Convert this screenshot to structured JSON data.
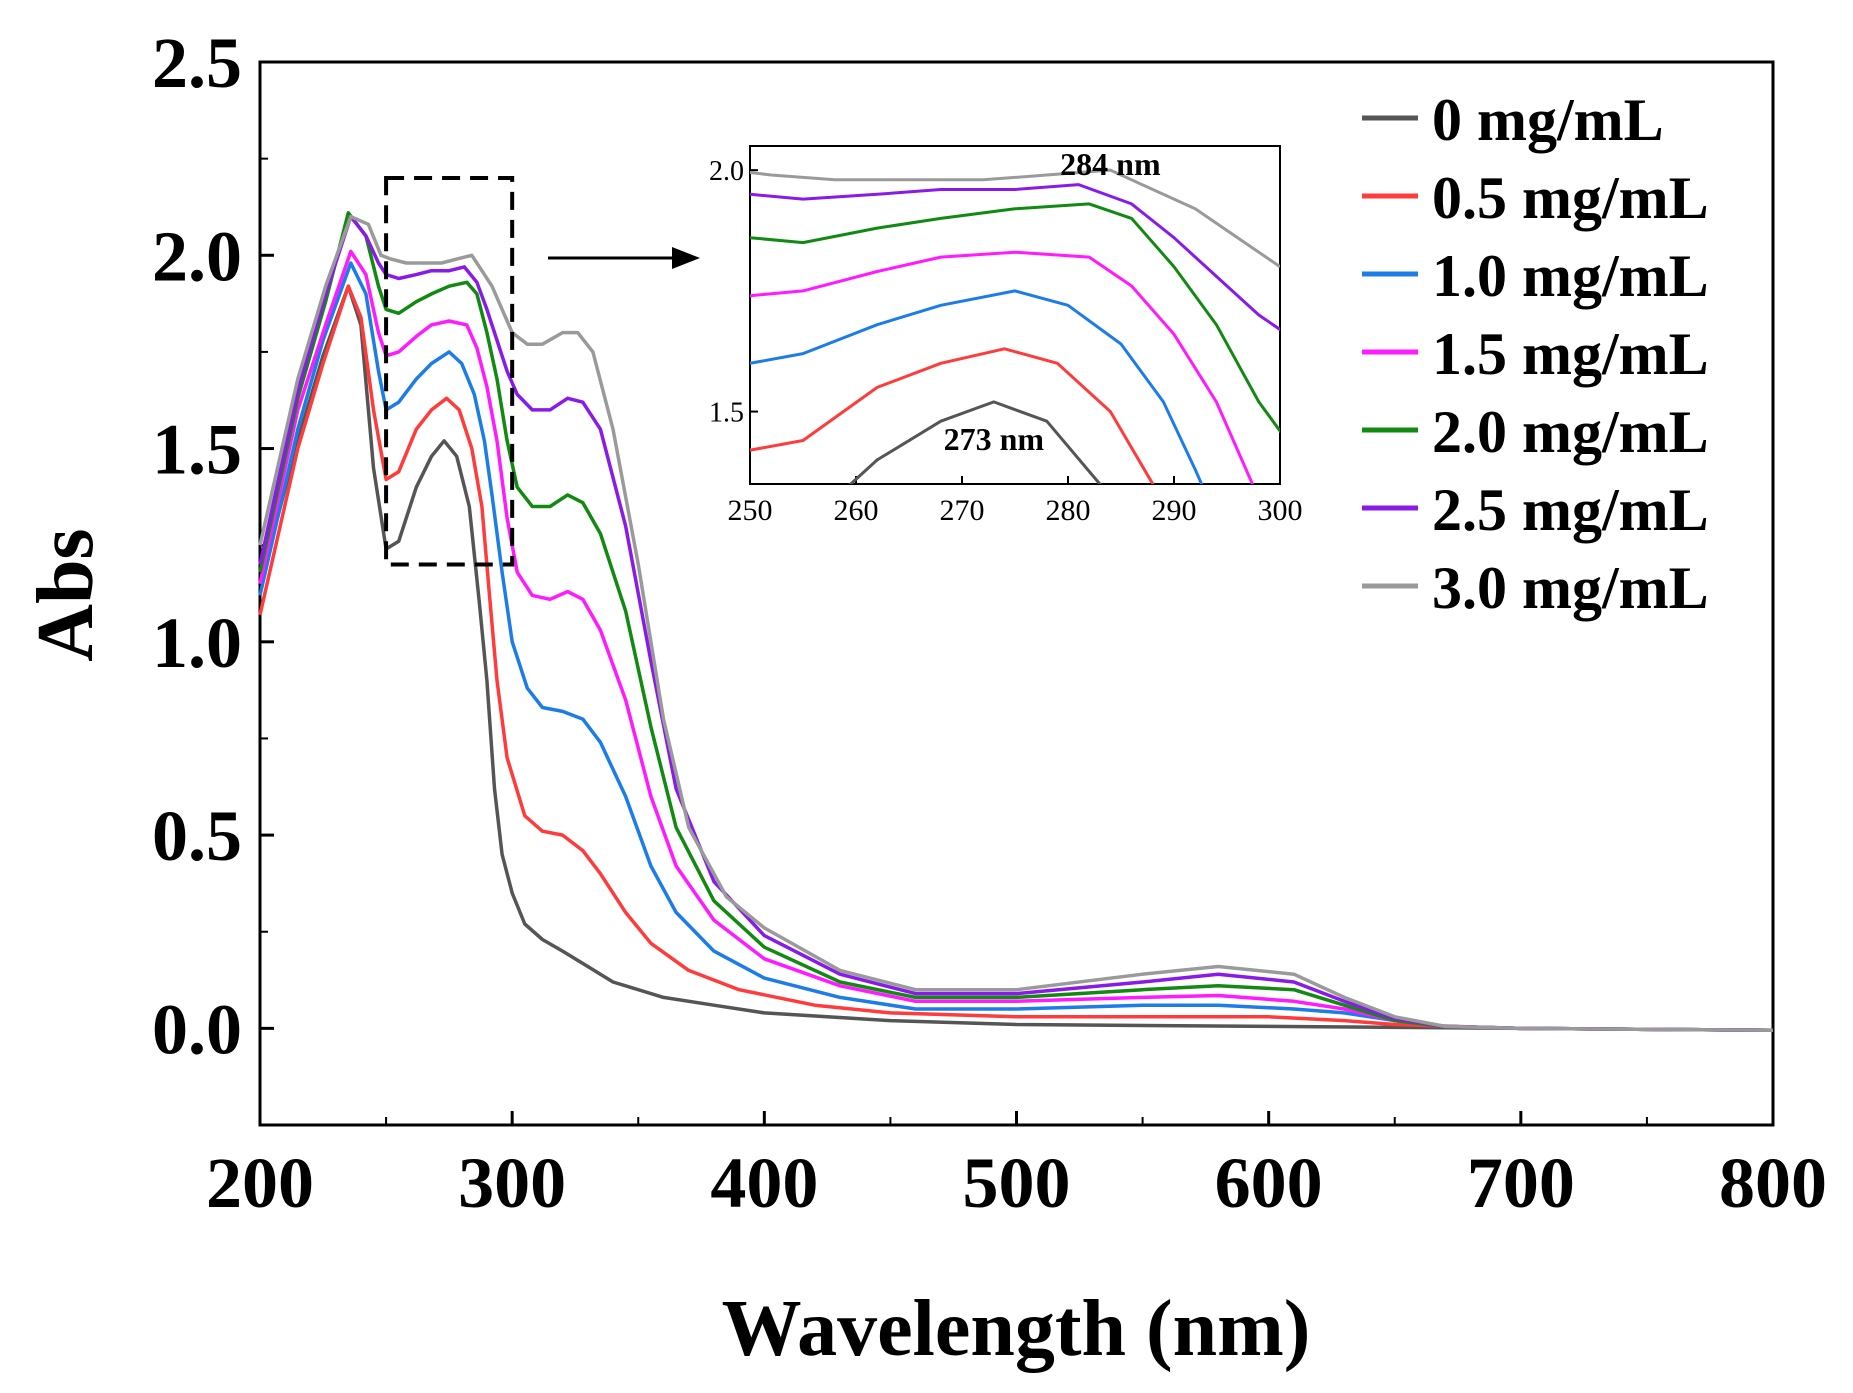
{
  "chart_data": {
    "type": "line",
    "title": "",
    "xlabel": "Wavelength (nm)",
    "ylabel": "Abs",
    "xlim": [
      200,
      800
    ],
    "ylim": [
      -0.25,
      2.5
    ],
    "xticks": [
      "200",
      "300",
      "400",
      "500",
      "600",
      "700",
      "800"
    ],
    "yticks": [
      "0.0",
      "0.5",
      "1.0",
      "1.5",
      "2.0",
      "2.5"
    ],
    "legend_position": "top-right",
    "grid": false,
    "series": [
      {
        "name": "0 mg/mL",
        "color": "#555555",
        "points": [
          [
            200,
            1.15
          ],
          [
            215,
            1.52
          ],
          [
            225,
            1.74
          ],
          [
            235,
            1.92
          ],
          [
            240,
            1.82
          ],
          [
            245,
            1.45
          ],
          [
            250,
            1.24
          ],
          [
            255,
            1.26
          ],
          [
            262,
            1.4
          ],
          [
            268,
            1.48
          ],
          [
            273,
            1.52
          ],
          [
            278,
            1.48
          ],
          [
            283,
            1.35
          ],
          [
            287,
            1.1
          ],
          [
            290,
            0.9
          ],
          [
            293,
            0.62
          ],
          [
            296,
            0.45
          ],
          [
            300,
            0.35
          ],
          [
            305,
            0.27
          ],
          [
            312,
            0.23
          ],
          [
            320,
            0.2
          ],
          [
            330,
            0.16
          ],
          [
            340,
            0.12
          ],
          [
            360,
            0.08
          ],
          [
            380,
            0.06
          ],
          [
            400,
            0.04
          ],
          [
            450,
            0.02
          ],
          [
            500,
            0.01
          ],
          [
            600,
            0.005
          ],
          [
            700,
            0.0
          ],
          [
            800,
            -0.005
          ]
        ]
      },
      {
        "name": "0.5 mg/mL",
        "color": "#ff3b3b",
        "points": [
          [
            200,
            1.07
          ],
          [
            215,
            1.5
          ],
          [
            225,
            1.72
          ],
          [
            235,
            1.92
          ],
          [
            240,
            1.84
          ],
          [
            245,
            1.6
          ],
          [
            250,
            1.42
          ],
          [
            255,
            1.44
          ],
          [
            262,
            1.55
          ],
          [
            268,
            1.6
          ],
          [
            274,
            1.63
          ],
          [
            279,
            1.6
          ],
          [
            284,
            1.5
          ],
          [
            288,
            1.35
          ],
          [
            291,
            1.12
          ],
          [
            294,
            0.9
          ],
          [
            298,
            0.7
          ],
          [
            305,
            0.55
          ],
          [
            312,
            0.51
          ],
          [
            320,
            0.5
          ],
          [
            328,
            0.46
          ],
          [
            335,
            0.4
          ],
          [
            345,
            0.3
          ],
          [
            355,
            0.22
          ],
          [
            370,
            0.15
          ],
          [
            390,
            0.1
          ],
          [
            420,
            0.06
          ],
          [
            450,
            0.04
          ],
          [
            500,
            0.03
          ],
          [
            550,
            0.03
          ],
          [
            600,
            0.03
          ],
          [
            630,
            0.02
          ],
          [
            650,
            0.01
          ],
          [
            700,
            0.0
          ],
          [
            800,
            -0.005
          ]
        ]
      },
      {
        "name": "1.0 mg/mL",
        "color": "#1c7ce8",
        "points": [
          [
            200,
            1.12
          ],
          [
            215,
            1.55
          ],
          [
            225,
            1.78
          ],
          [
            236,
            1.98
          ],
          [
            242,
            1.9
          ],
          [
            247,
            1.7
          ],
          [
            250,
            1.6
          ],
          [
            255,
            1.62
          ],
          [
            262,
            1.68
          ],
          [
            268,
            1.72
          ],
          [
            275,
            1.75
          ],
          [
            280,
            1.72
          ],
          [
            285,
            1.64
          ],
          [
            289,
            1.52
          ],
          [
            292,
            1.38
          ],
          [
            296,
            1.18
          ],
          [
            300,
            1.0
          ],
          [
            306,
            0.88
          ],
          [
            312,
            0.83
          ],
          [
            320,
            0.82
          ],
          [
            328,
            0.8
          ],
          [
            335,
            0.74
          ],
          [
            345,
            0.6
          ],
          [
            355,
            0.42
          ],
          [
            365,
            0.3
          ],
          [
            380,
            0.2
          ],
          [
            400,
            0.13
          ],
          [
            430,
            0.08
          ],
          [
            460,
            0.05
          ],
          [
            500,
            0.05
          ],
          [
            550,
            0.06
          ],
          [
            580,
            0.06
          ],
          [
            610,
            0.05
          ],
          [
            630,
            0.04
          ],
          [
            650,
            0.02
          ],
          [
            670,
            0.005
          ],
          [
            700,
            0.0
          ],
          [
            800,
            -0.005
          ]
        ]
      },
      {
        "name": "1.5 mg/mL",
        "color": "#ff1aff",
        "points": [
          [
            200,
            1.15
          ],
          [
            215,
            1.6
          ],
          [
            226,
            1.82
          ],
          [
            236,
            2.01
          ],
          [
            242,
            1.95
          ],
          [
            247,
            1.8
          ],
          [
            250,
            1.74
          ],
          [
            255,
            1.75
          ],
          [
            262,
            1.79
          ],
          [
            268,
            1.82
          ],
          [
            275,
            1.83
          ],
          [
            282,
            1.82
          ],
          [
            286,
            1.76
          ],
          [
            290,
            1.66
          ],
          [
            294,
            1.52
          ],
          [
            298,
            1.32
          ],
          [
            302,
            1.18
          ],
          [
            308,
            1.12
          ],
          [
            315,
            1.11
          ],
          [
            322,
            1.13
          ],
          [
            328,
            1.11
          ],
          [
            335,
            1.03
          ],
          [
            345,
            0.85
          ],
          [
            355,
            0.6
          ],
          [
            365,
            0.42
          ],
          [
            380,
            0.28
          ],
          [
            400,
            0.18
          ],
          [
            430,
            0.11
          ],
          [
            460,
            0.07
          ],
          [
            500,
            0.07
          ],
          [
            550,
            0.08
          ],
          [
            580,
            0.085
          ],
          [
            610,
            0.07
          ],
          [
            630,
            0.05
          ],
          [
            650,
            0.02
          ],
          [
            670,
            0.005
          ],
          [
            700,
            0.0
          ],
          [
            800,
            -0.005
          ]
        ]
      },
      {
        "name": "2.0 mg/mL",
        "color": "#128a12",
        "points": [
          [
            200,
            1.18
          ],
          [
            215,
            1.63
          ],
          [
            226,
            1.88
          ],
          [
            235,
            2.11
          ],
          [
            242,
            2.05
          ],
          [
            247,
            1.92
          ],
          [
            250,
            1.86
          ],
          [
            255,
            1.85
          ],
          [
            262,
            1.88
          ],
          [
            268,
            1.9
          ],
          [
            275,
            1.92
          ],
          [
            282,
            1.93
          ],
          [
            286,
            1.9
          ],
          [
            290,
            1.8
          ],
          [
            294,
            1.68
          ],
          [
            298,
            1.52
          ],
          [
            302,
            1.4
          ],
          [
            308,
            1.35
          ],
          [
            315,
            1.35
          ],
          [
            322,
            1.38
          ],
          [
            328,
            1.36
          ],
          [
            335,
            1.28
          ],
          [
            345,
            1.08
          ],
          [
            355,
            0.78
          ],
          [
            365,
            0.52
          ],
          [
            380,
            0.33
          ],
          [
            400,
            0.21
          ],
          [
            430,
            0.12
          ],
          [
            460,
            0.08
          ],
          [
            500,
            0.08
          ],
          [
            550,
            0.1
          ],
          [
            580,
            0.11
          ],
          [
            610,
            0.1
          ],
          [
            630,
            0.06
          ],
          [
            650,
            0.02
          ],
          [
            670,
            0.005
          ],
          [
            700,
            0.0
          ],
          [
            800,
            -0.005
          ]
        ]
      },
      {
        "name": "2.5 mg/mL",
        "color": "#8a1ae8",
        "points": [
          [
            200,
            1.2
          ],
          [
            215,
            1.65
          ],
          [
            226,
            1.9
          ],
          [
            236,
            2.1
          ],
          [
            242,
            2.05
          ],
          [
            247,
            1.98
          ],
          [
            250,
            1.95
          ],
          [
            255,
            1.94
          ],
          [
            262,
            1.95
          ],
          [
            268,
            1.96
          ],
          [
            275,
            1.96
          ],
          [
            281,
            1.97
          ],
          [
            286,
            1.93
          ],
          [
            290,
            1.86
          ],
          [
            294,
            1.78
          ],
          [
            298,
            1.7
          ],
          [
            302,
            1.64
          ],
          [
            308,
            1.6
          ],
          [
            315,
            1.6
          ],
          [
            322,
            1.63
          ],
          [
            328,
            1.62
          ],
          [
            335,
            1.55
          ],
          [
            345,
            1.3
          ],
          [
            355,
            0.95
          ],
          [
            365,
            0.62
          ],
          [
            380,
            0.38
          ],
          [
            400,
            0.24
          ],
          [
            430,
            0.14
          ],
          [
            460,
            0.09
          ],
          [
            500,
            0.09
          ],
          [
            550,
            0.12
          ],
          [
            580,
            0.14
          ],
          [
            610,
            0.12
          ],
          [
            630,
            0.07
          ],
          [
            650,
            0.025
          ],
          [
            670,
            0.005
          ],
          [
            700,
            0.0
          ],
          [
            800,
            -0.005
          ]
        ]
      },
      {
        "name": "3.0 mg/mL",
        "color": "#9a9a9a",
        "points": [
          [
            200,
            1.25
          ],
          [
            215,
            1.68
          ],
          [
            226,
            1.92
          ],
          [
            236,
            2.1
          ],
          [
            243,
            2.08
          ],
          [
            248,
            2.0
          ],
          [
            252,
            1.99
          ],
          [
            258,
            1.98
          ],
          [
            265,
            1.98
          ],
          [
            272,
            1.98
          ],
          [
            278,
            1.99
          ],
          [
            284,
            2.0
          ],
          [
            288,
            1.96
          ],
          [
            292,
            1.92
          ],
          [
            296,
            1.86
          ],
          [
            300,
            1.8
          ],
          [
            306,
            1.77
          ],
          [
            312,
            1.77
          ],
          [
            320,
            1.8
          ],
          [
            326,
            1.8
          ],
          [
            332,
            1.75
          ],
          [
            340,
            1.55
          ],
          [
            350,
            1.2
          ],
          [
            360,
            0.8
          ],
          [
            370,
            0.52
          ],
          [
            385,
            0.34
          ],
          [
            400,
            0.26
          ],
          [
            430,
            0.15
          ],
          [
            460,
            0.1
          ],
          [
            500,
            0.1
          ],
          [
            550,
            0.14
          ],
          [
            580,
            0.16
          ],
          [
            610,
            0.14
          ],
          [
            630,
            0.08
          ],
          [
            650,
            0.03
          ],
          [
            670,
            0.005
          ],
          [
            700,
            0.0
          ],
          [
            800,
            -0.005
          ]
        ]
      }
    ],
    "zoom_box": {
      "x_range": [
        250,
        300
      ],
      "y_range": [
        1.2,
        2.2
      ]
    },
    "inset": {
      "xlim": [
        250,
        300
      ],
      "ylim": [
        1.35,
        2.05
      ],
      "xticks": [
        "250",
        "260",
        "270",
        "280",
        "290",
        "300"
      ],
      "yticks": [
        "1.5",
        "2.0"
      ],
      "annotations": [
        {
          "text": "284 nm",
          "x": 284,
          "y": 1.99
        },
        {
          "text": "273 nm",
          "x": 273,
          "y": 1.42
        }
      ]
    }
  }
}
